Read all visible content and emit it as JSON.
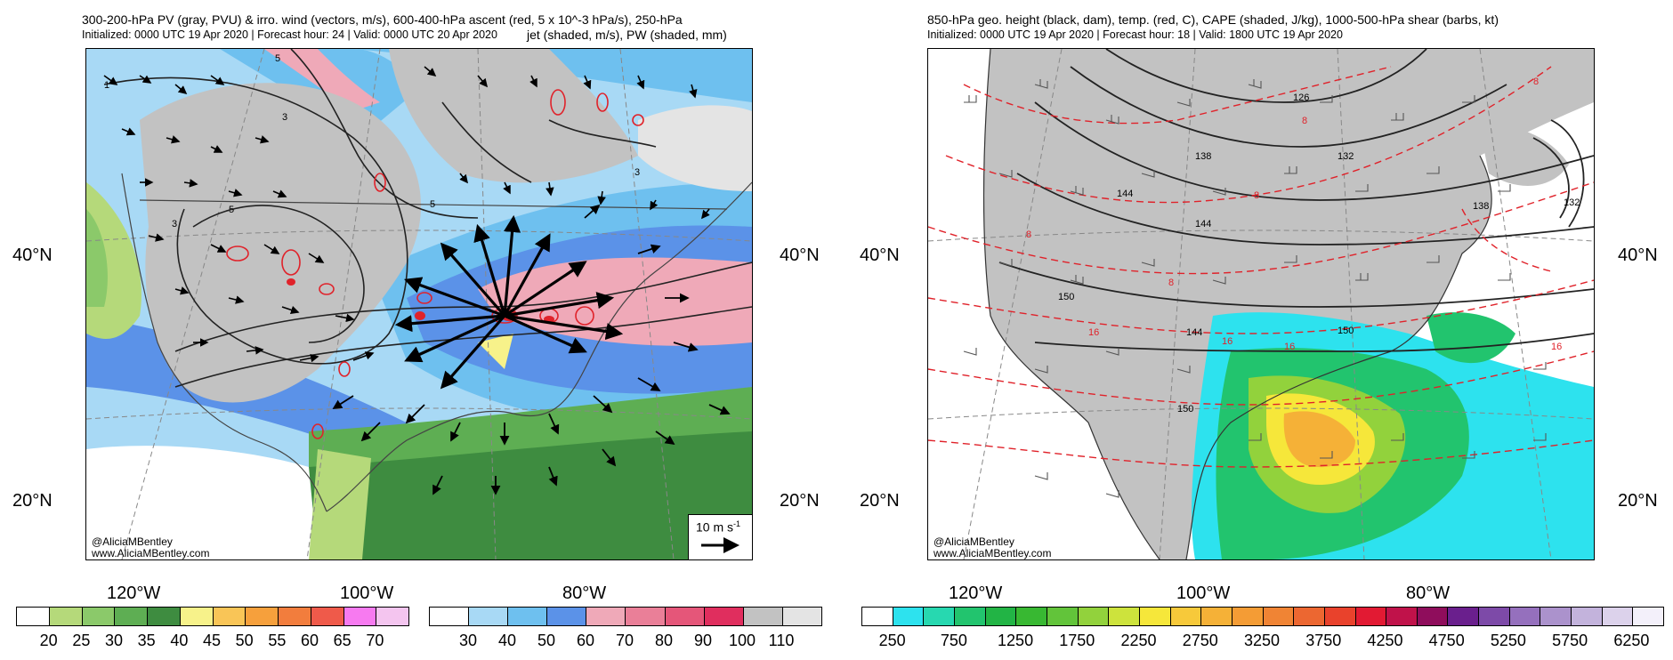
{
  "left_panel": {
    "title_line1": "300-200-hPa PV (gray, PVU) & irro. wind (vectors, m/s), 600-400-hPa ascent (red, 5 x 10^-3 hPa/s), 250-hPa",
    "title_line2a": "Initialized: 0000 UTC 19 Apr 2020 | Forecast hour: 24 | Valid: 0000 UTC 20 Apr 2020",
    "title_line2b": "jet (shaded, m/s), PW (shaded, mm)",
    "lat_labels": [
      "40°N",
      "20°N",
      "40°N",
      "20°N"
    ],
    "lon_labels": [
      "120°W",
      "100°W",
      "80°W"
    ],
    "credit_line1": "@AliciaMBentley",
    "credit_line2": "www.AliciaMBentley.com",
    "ref_vector_label": "10 m s",
    "ref_vector_exp": "-1",
    "contour_labels": [
      "1",
      "3",
      "5",
      "5",
      "5",
      "3",
      "3"
    ],
    "pw_colorbar": {
      "colors": [
        "#ffffff",
        "#b5d97a",
        "#8bc96a",
        "#5eae53",
        "#3e8c40",
        "#f7f28a",
        "#f9c557",
        "#f6a03c",
        "#f27d3d",
        "#ef5a4a",
        "#f77af0",
        "#f4c5ef"
      ],
      "labels": [
        "20",
        "25",
        "30",
        "35",
        "40",
        "45",
        "50",
        "55",
        "60",
        "65",
        "70"
      ]
    },
    "jet_colorbar": {
      "colors": [
        "#ffffff",
        "#a8d9f5",
        "#6ec0ef",
        "#5b92e8",
        "#efa9b8",
        "#ea7f98",
        "#e55679",
        "#e02e5e",
        "#c2c2c2",
        "#e4e4e4"
      ],
      "labels": [
        "30",
        "40",
        "50",
        "60",
        "70",
        "80",
        "90",
        "100",
        "110"
      ]
    }
  },
  "right_panel": {
    "title_line1": "850-hPa geo. height (black, dam), temp. (red, C), CAPE (shaded, J/kg), 1000-500-hPa shear (barbs, kt)",
    "title_line2": "Initialized: 0000 UTC 19 Apr 2020 | Forecast hour: 18 | Valid: 1800 UTC 19 Apr 2020",
    "lat_labels": [
      "40°N",
      "20°N",
      "40°N",
      "20°N"
    ],
    "lon_labels": [
      "120°W",
      "100°W",
      "80°W"
    ],
    "credit_line1": "@AliciaMBentley",
    "credit_line2": "www.AliciaMBentley.com",
    "height_labels": [
      "126",
      "138",
      "132",
      "144",
      "144",
      "138",
      "132",
      "150",
      "144",
      "150",
      "150"
    ],
    "temp_labels": [
      "8",
      "8",
      "8",
      "8",
      "16",
      "16",
      "16",
      "16",
      "8"
    ],
    "cape_colorbar": {
      "colors": [
        "#ffffff",
        "#2de2ee",
        "#27d8b0",
        "#22c46e",
        "#22b445",
        "#38b832",
        "#62c43a",
        "#92d23c",
        "#cde33c",
        "#f6e73a",
        "#f7c93a",
        "#f5b137",
        "#f49c35",
        "#f08434",
        "#ec6731",
        "#e9422c",
        "#e21a33",
        "#c0124a",
        "#8f0d5c",
        "#6a1f8d",
        "#7d4aa8",
        "#9570bd",
        "#ab92cc",
        "#c3b3dc",
        "#dcd2eb",
        "#f3f0fa"
      ],
      "labels": [
        "250",
        "750",
        "1250",
        "1750",
        "2250",
        "2750",
        "3250",
        "3750",
        "4250",
        "4750",
        "5250",
        "5750",
        "6250"
      ]
    }
  }
}
